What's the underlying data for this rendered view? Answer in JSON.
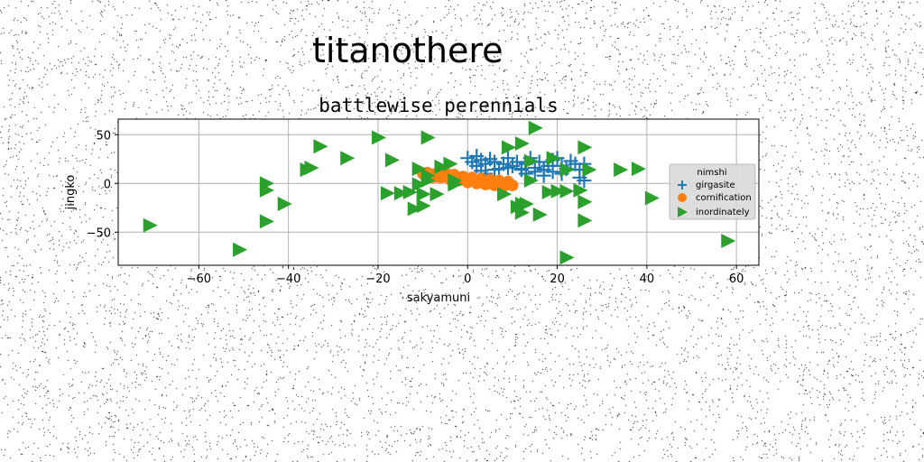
{
  "figure": {
    "suptitle": "titanothere"
  },
  "chart_data": {
    "type": "scatter",
    "title": "battlewise perennials",
    "xlabel": "sakyamuni",
    "ylabel": "jingko",
    "xlim": [
      -78,
      65
    ],
    "ylim": [
      -84,
      66
    ],
    "xticks": [
      -60,
      -40,
      -20,
      0,
      20,
      40,
      60
    ],
    "yticks": [
      -50,
      0,
      50
    ],
    "xtick_labels": [
      "−60",
      "−40",
      "−20",
      "0",
      "20",
      "40",
      "60"
    ],
    "ytick_labels": [
      "−50",
      "0",
      "50"
    ],
    "grid": true,
    "legend": {
      "title": "nimshi",
      "placement": "center-right"
    },
    "series": [
      {
        "name": "girgasite",
        "marker": "plus",
        "color": "#1f77b4",
        "points": [
          [
            0,
            26
          ],
          [
            1,
            22
          ],
          [
            2,
            28
          ],
          [
            3,
            24
          ],
          [
            2,
            18
          ],
          [
            4,
            20
          ],
          [
            5,
            25
          ],
          [
            6,
            22
          ],
          [
            7,
            15
          ],
          [
            8,
            20
          ],
          [
            9,
            26
          ],
          [
            10,
            18
          ],
          [
            11,
            22
          ],
          [
            12,
            14
          ],
          [
            13,
            20
          ],
          [
            14,
            26
          ],
          [
            15,
            16
          ],
          [
            16,
            22
          ],
          [
            17,
            14
          ],
          [
            18,
            18
          ],
          [
            19,
            24
          ],
          [
            20,
            26
          ],
          [
            21,
            18
          ],
          [
            22,
            15
          ],
          [
            23,
            23
          ],
          [
            24,
            20
          ],
          [
            25,
            6
          ],
          [
            25,
            14
          ],
          [
            26,
            20
          ],
          [
            26,
            3
          ],
          [
            19,
            12
          ],
          [
            17,
            8
          ],
          [
            15,
            12
          ],
          [
            12,
            15
          ],
          [
            9,
            16
          ],
          [
            6,
            14
          ],
          [
            4,
            10
          ],
          [
            3,
            13
          ],
          [
            13,
            10
          ],
          [
            21,
            10
          ]
        ]
      },
      {
        "name": "cornification",
        "marker": "circle",
        "color": "#ff7f0e",
        "points": [
          [
            -10,
            10
          ],
          [
            -9,
            8
          ],
          [
            -8,
            9
          ],
          [
            -7,
            7
          ],
          [
            -6,
            6
          ],
          [
            -5,
            8
          ],
          [
            -4,
            6
          ],
          [
            -3,
            5
          ],
          [
            -2,
            6
          ],
          [
            -1,
            4
          ],
          [
            0,
            3
          ],
          [
            1,
            4
          ],
          [
            2,
            2
          ],
          [
            3,
            1
          ],
          [
            4,
            2
          ],
          [
            5,
            0
          ],
          [
            6,
            1
          ],
          [
            7,
            -1
          ],
          [
            8,
            0
          ],
          [
            9,
            -1
          ],
          [
            10,
            -2
          ],
          [
            -8,
            6
          ],
          [
            -6,
            9
          ],
          [
            -4,
            4
          ],
          [
            -2,
            3
          ],
          [
            0,
            1
          ],
          [
            2,
            0
          ],
          [
            4,
            -1
          ],
          [
            6,
            -2
          ],
          [
            8,
            -3
          ],
          [
            -9,
            11
          ],
          [
            -7,
            10
          ],
          [
            -5,
            11
          ],
          [
            -3,
            9
          ],
          [
            -1,
            7
          ],
          [
            1,
            6
          ],
          [
            3,
            5
          ],
          [
            5,
            4
          ],
          [
            7,
            3
          ],
          [
            9,
            2
          ]
        ]
      },
      {
        "name": "inordinately",
        "marker": "triangle-right",
        "color": "#2ca02c",
        "points": [
          [
            15,
            57
          ],
          [
            -33,
            38
          ],
          [
            -20,
            47
          ],
          [
            -9,
            47
          ],
          [
            9,
            37
          ],
          [
            12,
            41
          ],
          [
            26,
            37
          ],
          [
            -27,
            26
          ],
          [
            -17,
            24
          ],
          [
            -35,
            16
          ],
          [
            -36,
            14
          ],
          [
            -45,
            0
          ],
          [
            -45,
            -7
          ],
          [
            -41,
            -21
          ],
          [
            -45,
            -39
          ],
          [
            -71,
            -43
          ],
          [
            -51,
            -68
          ],
          [
            -11,
            15
          ],
          [
            -9,
            8
          ],
          [
            -9,
            3
          ],
          [
            -6,
            17
          ],
          [
            -4,
            20
          ],
          [
            -3,
            3
          ],
          [
            14,
            23
          ],
          [
            19,
            26
          ],
          [
            22,
            14
          ],
          [
            27,
            14
          ],
          [
            34,
            14
          ],
          [
            38,
            15
          ],
          [
            41,
            -15
          ],
          [
            58,
            -59
          ],
          [
            22,
            -76
          ],
          [
            26,
            -19
          ],
          [
            26,
            -38
          ],
          [
            20,
            -8
          ],
          [
            22,
            -8
          ],
          [
            18,
            -9
          ],
          [
            14,
            3
          ],
          [
            8,
            -11
          ],
          [
            11,
            -24
          ],
          [
            12,
            -21
          ],
          [
            12,
            -30
          ],
          [
            16,
            -32
          ],
          [
            -3,
            -1
          ],
          [
            -11,
            -1
          ],
          [
            -13,
            -9
          ],
          [
            -18,
            -10
          ],
          [
            -15,
            -10
          ],
          [
            -10,
            -11
          ],
          [
            -7,
            -11
          ],
          [
            -12,
            -26
          ],
          [
            -10,
            -23
          ],
          [
            25,
            -7
          ],
          [
            13,
            -21
          ]
        ]
      }
    ]
  }
}
